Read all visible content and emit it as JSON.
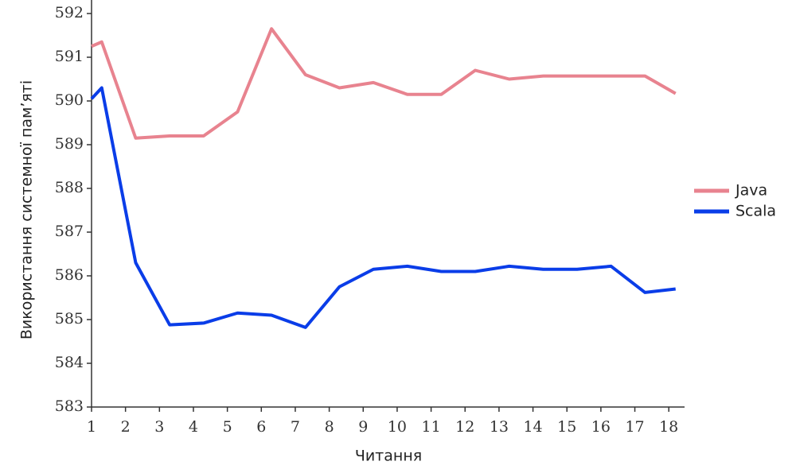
{
  "chart_data": {
    "type": "line",
    "x_label": "Читання",
    "y_label": "Використання системної пам’яті",
    "x": [
      1,
      1.3,
      2.3,
      3.3,
      4.3,
      5.3,
      6.3,
      7.3,
      8.3,
      9.3,
      10.3,
      11.3,
      12.3,
      13.3,
      14.3,
      15.3,
      16.3,
      17.3,
      18.2
    ],
    "series": [
      {
        "name": "Java",
        "color": "#e8838f",
        "values": [
          591.25,
          591.35,
          589.15,
          589.2,
          589.2,
          589.75,
          591.65,
          590.6,
          590.3,
          590.42,
          590.15,
          590.15,
          590.7,
          590.5,
          590.57,
          590.57,
          590.57,
          590.57,
          590.17
        ]
      },
      {
        "name": "Scala",
        "color": "#0a3de8",
        "values": [
          590.05,
          590.3,
          586.3,
          584.88,
          584.92,
          585.15,
          585.1,
          584.82,
          585.75,
          586.15,
          586.22,
          586.1,
          586.1,
          586.22,
          586.15,
          586.15,
          586.22,
          585.62,
          585.7
        ]
      }
    ],
    "xlim": [
      1,
      18.3
    ],
    "xticks": [
      1,
      2,
      3,
      4,
      5,
      6,
      7,
      8,
      9,
      10,
      11,
      12,
      13,
      14,
      15,
      16,
      17,
      18
    ],
    "ylim": [
      583,
      592
    ],
    "yticks": [
      583,
      584,
      585,
      586,
      587,
      588,
      589,
      590,
      591,
      592
    ],
    "legend": "right"
  }
}
